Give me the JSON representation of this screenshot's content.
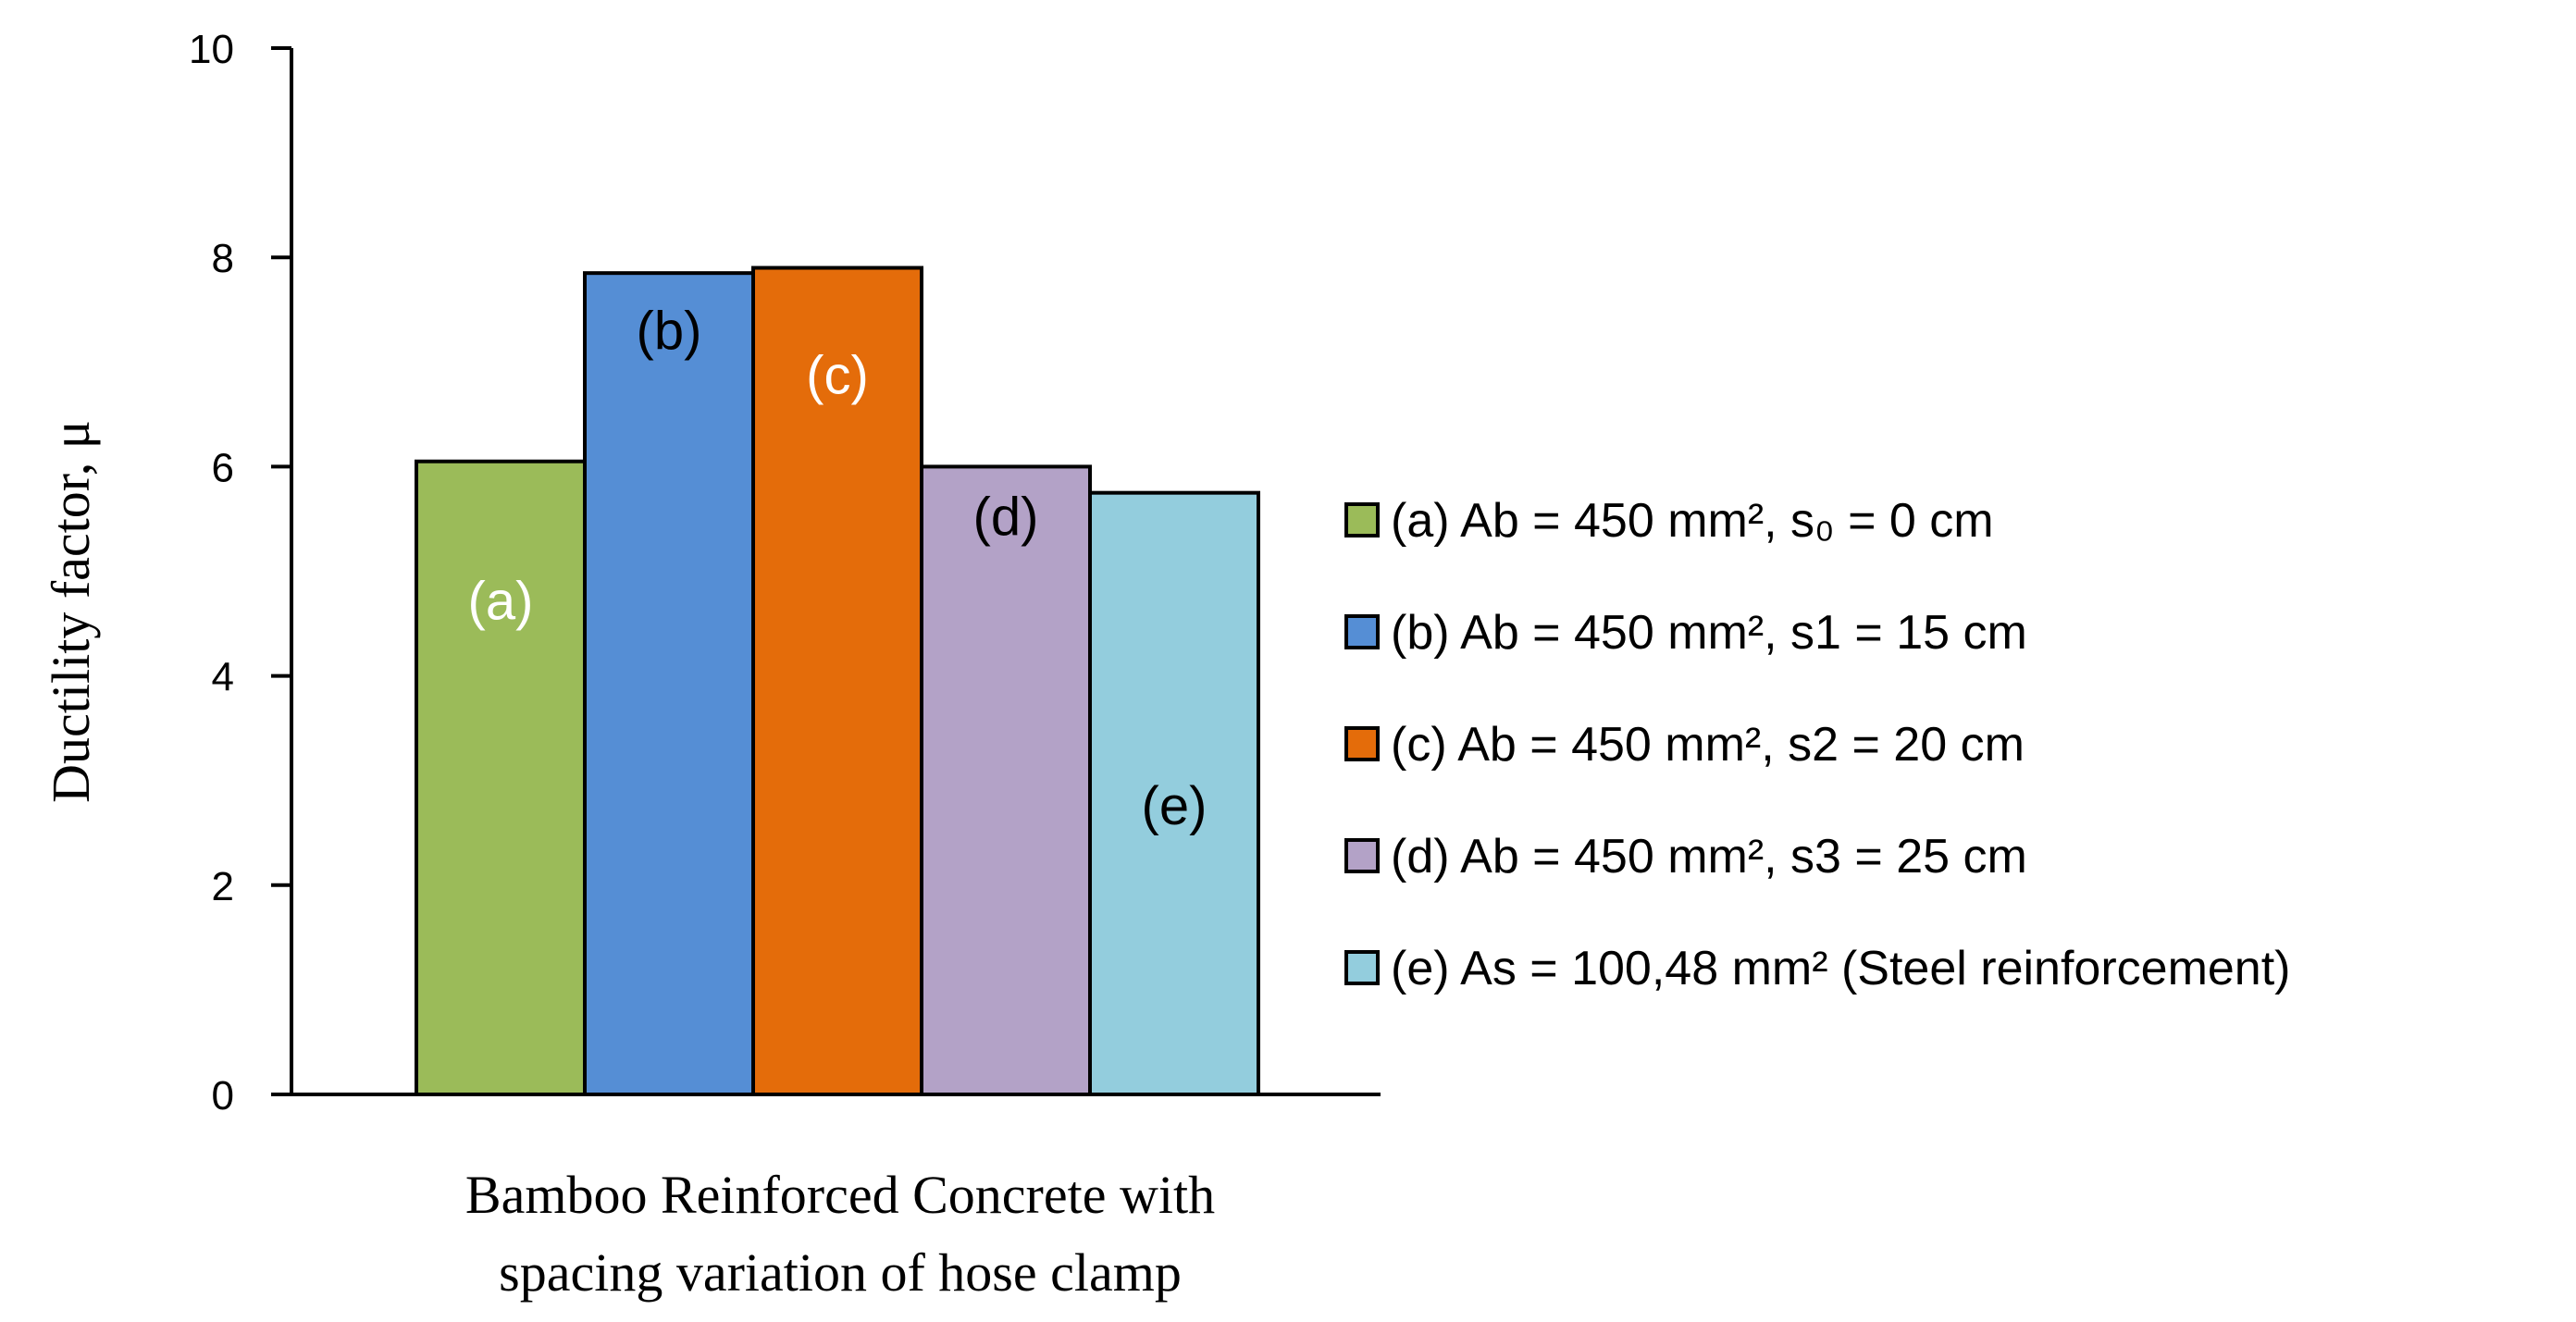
{
  "chart_data": {
    "type": "bar",
    "title": "",
    "ylabel": "Ductility factor, μ",
    "xlabel": [
      "Bamboo Reinforced Concrete with",
      "spacing variation of hose clamp"
    ],
    "ylim": [
      0,
      10
    ],
    "yticks": [
      0,
      2,
      4,
      6,
      8,
      10
    ],
    "grid": false,
    "legend_position": "right",
    "series": [
      {
        "name": "(a) Ab = 450 mm², s₀ = 0 cm",
        "label": "(a)",
        "value": 6.05,
        "color": "#9bbb59",
        "label_color": "#ffffff"
      },
      {
        "name": "(b) Ab = 450 mm², s1 = 15 cm",
        "label": "(b)",
        "value": 7.85,
        "color": "#558ed5",
        "label_color": "#000000"
      },
      {
        "name": "(c) Ab = 450 mm², s2 = 20 cm",
        "label": "(c)",
        "value": 7.9,
        "color": "#e46c0a",
        "label_color": "#ffffff"
      },
      {
        "name": "(d) Ab = 450 mm², s3 = 25 cm",
        "label": "(d)",
        "value": 6.0,
        "color": "#b3a2c7",
        "label_color": "#000000"
      },
      {
        "name": "(e) As = 100,48 mm² (Steel reinforcement)",
        "label": "(e)",
        "value": 5.75,
        "color": "#93cddd",
        "label_color": "#000000"
      }
    ]
  }
}
